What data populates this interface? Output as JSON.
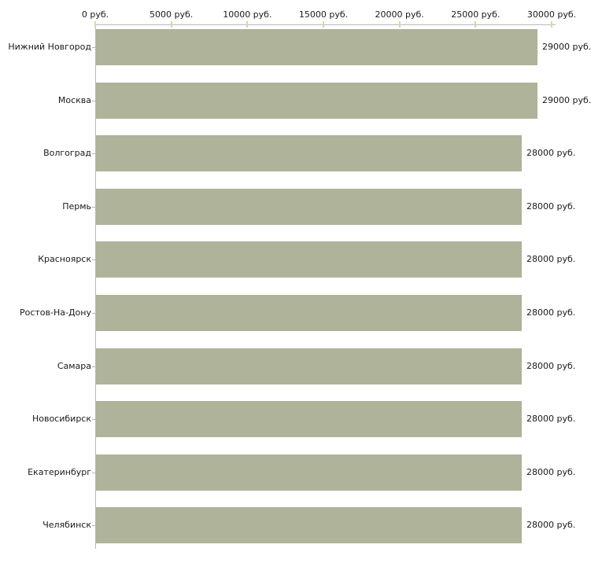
{
  "chart_data": {
    "type": "bar",
    "orientation": "horizontal",
    "title": "",
    "xlabel": "",
    "ylabel": "",
    "categories": [
      "Нижний Новгород",
      "Москва",
      "Волгоград",
      "Пермь",
      "Красноярск",
      "Ростов-На-Дону",
      "Самара",
      "Новосибирск",
      "Екатеринбург",
      "Челябинск"
    ],
    "values": [
      29000,
      29000,
      28000,
      28000,
      28000,
      28000,
      28000,
      28000,
      28000,
      28000
    ],
    "value_labels": [
      "29000 руб.",
      "29000 руб.",
      "28000 руб.",
      "28000 руб.",
      "28000 руб.",
      "28000 руб.",
      "28000 руб.",
      "28000 руб.",
      "28000 руб.",
      "28000 руб."
    ],
    "x_tick_values": [
      0,
      5000,
      10000,
      15000,
      20000,
      25000,
      30000
    ],
    "x_tick_labels": [
      "0 руб.",
      "5000 руб.",
      "10000 руб.",
      "15000 руб.",
      "20000 руб.",
      "25000 руб.",
      "30000 руб."
    ],
    "xlim": [
      0,
      30000
    ],
    "grid": false,
    "legend": false,
    "colors": {
      "bar": "#aeb39a",
      "axis_line": "#b9b9b9",
      "x_tick_mark": "#d8d5ad",
      "y_tick_mark": "#b0b0b0",
      "text": "#1a1a1a",
      "background": "#ffffff"
    }
  },
  "layout_note": "top x-axis ruble scale, right-aligned city labels, value labels right of bars"
}
